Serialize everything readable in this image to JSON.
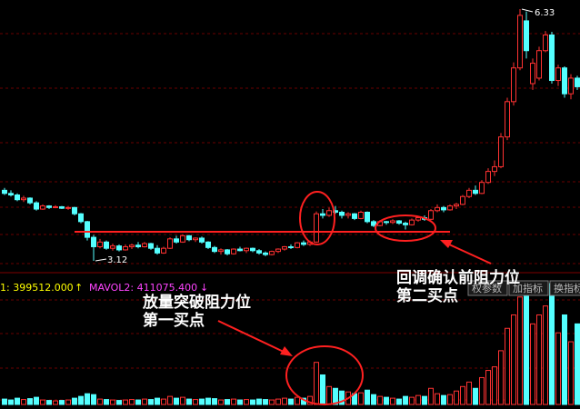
{
  "chart_data": {
    "type": "candlestick",
    "candles": [
      [
        4.02,
        4.05,
        3.96,
        3.98
      ],
      [
        3.98,
        4.02,
        3.94,
        3.96
      ],
      [
        3.96,
        3.98,
        3.88,
        3.9
      ],
      [
        3.9,
        3.95,
        3.87,
        3.92
      ],
      [
        3.92,
        3.93,
        3.84,
        3.86
      ],
      [
        3.86,
        3.88,
        3.76,
        3.78
      ],
      [
        3.78,
        3.84,
        3.77,
        3.82
      ],
      [
        3.82,
        3.83,
        3.78,
        3.8
      ],
      [
        3.8,
        3.83,
        3.79,
        3.81
      ],
      [
        3.81,
        3.82,
        3.78,
        3.79
      ],
      [
        3.79,
        3.82,
        3.77,
        3.8
      ],
      [
        3.8,
        3.81,
        3.7,
        3.72
      ],
      [
        3.72,
        3.73,
        3.6,
        3.62
      ],
      [
        3.62,
        3.63,
        3.38,
        3.42
      ],
      [
        3.42,
        3.45,
        3.12,
        3.3
      ],
      [
        3.3,
        3.4,
        3.28,
        3.36
      ],
      [
        3.36,
        3.38,
        3.26,
        3.28
      ],
      [
        3.28,
        3.34,
        3.25,
        3.31
      ],
      [
        3.31,
        3.33,
        3.24,
        3.26
      ],
      [
        3.26,
        3.33,
        3.25,
        3.3
      ],
      [
        3.3,
        3.34,
        3.27,
        3.32
      ],
      [
        3.32,
        3.36,
        3.28,
        3.3
      ],
      [
        3.3,
        3.36,
        3.29,
        3.34
      ],
      [
        3.34,
        3.35,
        3.26,
        3.28
      ],
      [
        3.28,
        3.32,
        3.2,
        3.22
      ],
      [
        3.22,
        3.3,
        3.21,
        3.28
      ],
      [
        3.28,
        3.42,
        3.27,
        3.4
      ],
      [
        3.4,
        3.44,
        3.34,
        3.36
      ],
      [
        3.36,
        3.46,
        3.35,
        3.44
      ],
      [
        3.44,
        3.45,
        3.37,
        3.39
      ],
      [
        3.39,
        3.42,
        3.36,
        3.41
      ],
      [
        3.41,
        3.43,
        3.34,
        3.36
      ],
      [
        3.36,
        3.37,
        3.27,
        3.29
      ],
      [
        3.29,
        3.31,
        3.22,
        3.24
      ],
      [
        3.24,
        3.28,
        3.2,
        3.26
      ],
      [
        3.26,
        3.27,
        3.19,
        3.21
      ],
      [
        3.21,
        3.28,
        3.2,
        3.27
      ],
      [
        3.27,
        3.3,
        3.24,
        3.25
      ],
      [
        3.25,
        3.29,
        3.22,
        3.28
      ],
      [
        3.28,
        3.29,
        3.23,
        3.25
      ],
      [
        3.25,
        3.27,
        3.2,
        3.22
      ],
      [
        3.22,
        3.24,
        3.18,
        3.2
      ],
      [
        3.2,
        3.25,
        3.19,
        3.24
      ],
      [
        3.24,
        3.28,
        3.22,
        3.27
      ],
      [
        3.27,
        3.31,
        3.25,
        3.3
      ],
      [
        3.3,
        3.33,
        3.27,
        3.29
      ],
      [
        3.29,
        3.36,
        3.28,
        3.35
      ],
      [
        3.35,
        3.38,
        3.31,
        3.33
      ],
      [
        3.33,
        3.38,
        3.31,
        3.36
      ],
      [
        3.36,
        3.75,
        3.35,
        3.72
      ],
      [
        3.72,
        3.78,
        3.66,
        3.7
      ],
      [
        3.7,
        3.8,
        3.68,
        3.76
      ],
      [
        3.76,
        3.82,
        3.72,
        3.74
      ],
      [
        3.74,
        3.76,
        3.66,
        3.7
      ],
      [
        3.7,
        3.74,
        3.66,
        3.72
      ],
      [
        3.72,
        3.73,
        3.64,
        3.66
      ],
      [
        3.66,
        3.76,
        3.65,
        3.74
      ],
      [
        3.74,
        3.75,
        3.6,
        3.62
      ],
      [
        3.62,
        3.64,
        3.55,
        3.57
      ],
      [
        3.57,
        3.64,
        3.56,
        3.62
      ],
      [
        3.62,
        3.63,
        3.58,
        3.61
      ],
      [
        3.61,
        3.65,
        3.59,
        3.63
      ],
      [
        3.63,
        3.64,
        3.58,
        3.6
      ],
      [
        3.6,
        3.62,
        3.52,
        3.58
      ],
      [
        3.58,
        3.66,
        3.57,
        3.64
      ],
      [
        3.64,
        3.69,
        3.62,
        3.67
      ],
      [
        3.67,
        3.7,
        3.63,
        3.65
      ],
      [
        3.65,
        3.78,
        3.64,
        3.76
      ],
      [
        3.76,
        3.84,
        3.74,
        3.8
      ],
      [
        3.8,
        3.82,
        3.74,
        3.77
      ],
      [
        3.77,
        3.84,
        3.76,
        3.82
      ],
      [
        3.82,
        3.86,
        3.78,
        3.84
      ],
      [
        3.84,
        3.96,
        3.83,
        3.94
      ],
      [
        3.94,
        4.05,
        3.92,
        4.02
      ],
      [
        4.02,
        4.08,
        3.96,
        3.98
      ],
      [
        3.98,
        4.15,
        3.97,
        4.12
      ],
      [
        4.12,
        4.3,
        4.1,
        4.26
      ],
      [
        4.26,
        4.4,
        4.2,
        4.32
      ],
      [
        4.32,
        4.75,
        4.3,
        4.7
      ],
      [
        4.7,
        5.2,
        4.66,
        5.15
      ],
      [
        5.15,
        5.65,
        5.1,
        5.58
      ],
      [
        5.58,
        6.33,
        5.55,
        6.25
      ],
      [
        6.18,
        6.3,
        5.7,
        5.8
      ],
      [
        5.38,
        5.7,
        5.3,
        5.64
      ],
      [
        5.45,
        5.85,
        5.42,
        5.8
      ],
      [
        5.8,
        6.05,
        5.78,
        6.0
      ],
      [
        6.0,
        6.04,
        5.38,
        5.42
      ],
      [
        5.42,
        5.62,
        5.35,
        5.58
      ],
      [
        5.58,
        5.6,
        5.2,
        5.25
      ],
      [
        5.25,
        5.5,
        5.18,
        5.45
      ],
      [
        5.45,
        5.48,
        5.3,
        5.34
      ]
    ],
    "volume": [
      60000,
      50000,
      70000,
      55000,
      65000,
      80000,
      50000,
      45000,
      40000,
      45000,
      50000,
      70000,
      90000,
      120000,
      110000,
      60000,
      55000,
      50000,
      45000,
      50000,
      55000,
      50000,
      60000,
      55000,
      70000,
      60000,
      90000,
      70000,
      80000,
      60000,
      55000,
      60000,
      70000,
      65000,
      50000,
      55000,
      60000,
      50000,
      55000,
      50000,
      60000,
      55000,
      50000,
      60000,
      70000,
      60000,
      80000,
      70000,
      90000,
      470000,
      330000,
      200000,
      180000,
      150000,
      140000,
      120000,
      130000,
      160000,
      110000,
      90000,
      80000,
      70000,
      60000,
      90000,
      80000,
      100000,
      90000,
      180000,
      120000,
      100000,
      110000,
      150000,
      200000,
      250000,
      180000,
      300000,
      380000,
      420000,
      600000,
      850000,
      1000000,
      1200000,
      1300000,
      900000,
      1000000,
      1100000,
      1350000,
      800000,
      1000000,
      700000,
      900000
    ],
    "volume_header": [
      {
        "text": "1: 399512.000",
        "color": "#ffff00"
      },
      {
        "text": "↑",
        "color": "#ffff00"
      },
      {
        "text": "MAVOL2: 411075.400",
        "color": "#ff44ff"
      },
      {
        "text": "↓",
        "color": "#ff44ff"
      }
    ],
    "buttons": [
      "权参数",
      "加指标",
      "换指标"
    ],
    "annotations": [
      {
        "lines": [
          "放量突破阻力位",
          "第一买点"
        ]
      },
      {
        "lines": [
          "回调确认前阻力位",
          "第二买点"
        ]
      }
    ],
    "up_color": "#ff3232",
    "down_color": "#54ffff"
  }
}
